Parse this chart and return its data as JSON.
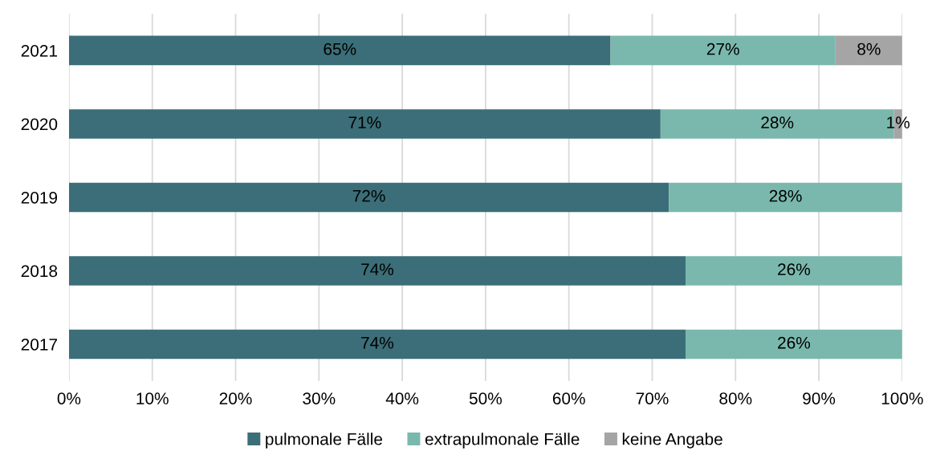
{
  "chart_data": {
    "type": "bar",
    "orientation": "horizontal",
    "stacked": true,
    "categories": [
      "2021",
      "2020",
      "2019",
      "2018",
      "2017"
    ],
    "series": [
      {
        "name": "pulmonale Fälle",
        "color": "#3b6e78",
        "values": [
          65,
          71,
          72,
          74,
          74
        ],
        "value_labels": [
          "65%",
          "71%",
          "72%",
          "74%",
          "74%"
        ]
      },
      {
        "name": "extrapulmonale Fälle",
        "color": "#7ab8ad",
        "values": [
          27,
          28,
          28,
          26,
          26
        ],
        "value_labels": [
          "27%",
          "28%",
          "28%",
          "26%",
          "26%"
        ]
      },
      {
        "name": "keine Angabe",
        "color": "#a5a5a5",
        "values": [
          8,
          1,
          null,
          null,
          null
        ],
        "value_labels": [
          "8%",
          "1%",
          null,
          null,
          null
        ]
      }
    ],
    "xlim": [
      0,
      100
    ],
    "xticks": [
      {
        "value": 0,
        "label": "0%"
      },
      {
        "value": 10,
        "label": "10%"
      },
      {
        "value": 20,
        "label": "20%"
      },
      {
        "value": 30,
        "label": "30%"
      },
      {
        "value": 40,
        "label": "40%"
      },
      {
        "value": 50,
        "label": "50%"
      },
      {
        "value": 60,
        "label": "60%"
      },
      {
        "value": 70,
        "label": "70%"
      },
      {
        "value": 80,
        "label": "80%"
      },
      {
        "value": 90,
        "label": "90%"
      },
      {
        "value": 100,
        "label": "100%"
      }
    ],
    "grid": "x",
    "legend": "bottom"
  }
}
